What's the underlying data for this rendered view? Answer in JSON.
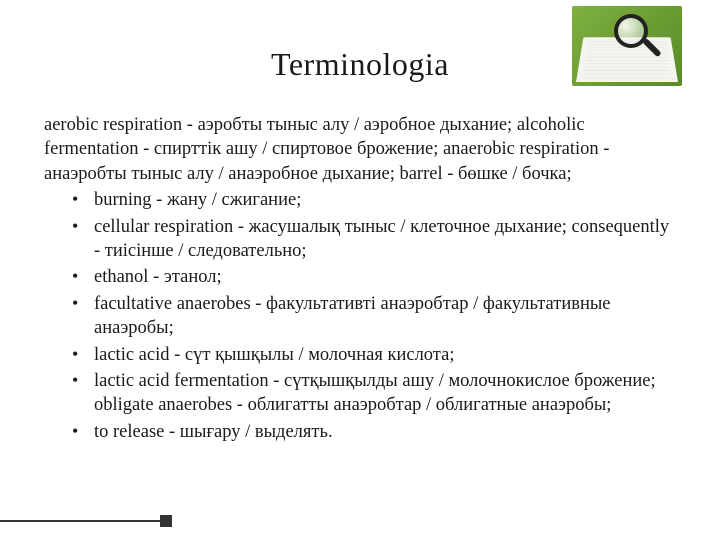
{
  "title": "Terminologia",
  "intro": "aerobic respiration - аэробты тыныс алу / аэробное дыхание; alcoholic fermentation - спирттік ашу / спиртовое брожение; anaerobic respiration - анаэробты тыныс алу / анаэробное дыхание; barrel - бөшке / бочка;",
  "bullets": [
    "burning - жану / сжигание;",
    "cellular respiration - жасушалық тыныс / клеточное дыхание; consequently - тиісінше / следовательно;",
    "ethanol - этанол;",
    "facultative anaerobes - факультативті анаэробтар / факультативные анаэробы;",
    "lactic acid - сүт қышқылы / молочная кислота;",
    "lactic acid fermentation - сүтқышқылды ашу / молочнокислое брожение; obligate anaerobes - облигатты анаэробтар / облигатные анаэробы;",
    "to release - шығару / выделять."
  ],
  "colors": {
    "background": "#ffffff",
    "text": "#1a1a1a",
    "accent_bg": "#7fb040",
    "footer": "#333333"
  },
  "typography": {
    "title_fontsize": 32,
    "body_fontsize": 18.5,
    "font_family": "Times New Roman"
  },
  "header_image": {
    "depicts": "magnifying glass over open dictionary",
    "bg_gradient": [
      "#7fb040",
      "#5a8a28"
    ]
  }
}
